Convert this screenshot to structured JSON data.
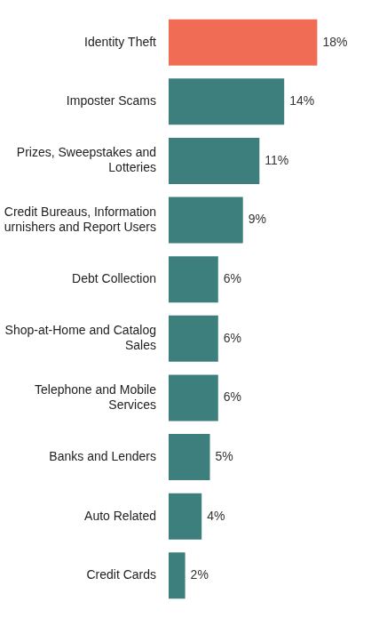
{
  "chart_data": {
    "type": "bar",
    "orientation": "horizontal",
    "categories": [
      "Identity Theft",
      "Imposter Scams",
      "Prizes, Sweepstakes and Lotteries",
      "Credit Bureaus, Information Furnishers and Report Users",
      "Debt Collection",
      "Shop-at-Home and Catalog Sales",
      "Telephone and Mobile Services",
      "Banks and Lenders",
      "Auto Related",
      "Credit Cards"
    ],
    "values": [
      18,
      14,
      11,
      9,
      6,
      6,
      6,
      5,
      4,
      2
    ],
    "value_labels": [
      "18%",
      "14%",
      "11%",
      "9%",
      "6%",
      "6%",
      "6%",
      "5%",
      "4%",
      "2%"
    ],
    "colors": [
      "#f06c54",
      "#3c7f7c",
      "#3c7f7c",
      "#3c7f7c",
      "#3c7f7c",
      "#3c7f7c",
      "#3c7f7c",
      "#3c7f7c",
      "#3c7f7c",
      "#3c7f7c"
    ],
    "data_labels": true,
    "tick_labels": "y",
    "grid": false
  }
}
